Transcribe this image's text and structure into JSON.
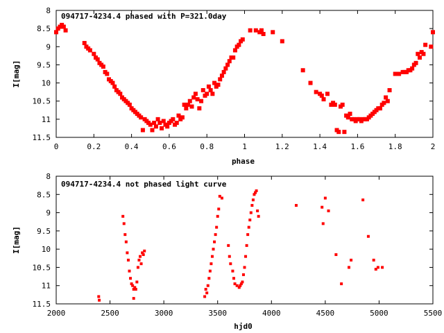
{
  "chart_data": [
    {
      "type": "scatter",
      "title": "094717-4234.4 phased with P=321.0day",
      "xlabel": "phase",
      "ylabel": "I[mag]",
      "xlim": [
        0,
        2
      ],
      "ylim": [
        11.5,
        8
      ],
      "y_inverted": true,
      "xticks": [
        "0",
        "0.2",
        "0.4",
        "0.6",
        "0.8",
        "1",
        "1.2",
        "1.4",
        "1.6",
        "1.8",
        "2"
      ],
      "yticks": [
        "8",
        "8.5",
        "9",
        "9.5",
        "10",
        "10.5",
        "11",
        "11.5"
      ],
      "marker": "filled-square-large",
      "color": "#ff0000",
      "grid": false,
      "series": [
        {
          "x": [
            0.0,
            0.01,
            0.02,
            0.03,
            0.04,
            0.05,
            0.15,
            0.16,
            0.17,
            0.18,
            0.2,
            0.21,
            0.22,
            0.23,
            0.24,
            0.25,
            0.26,
            0.27,
            0.28,
            0.29,
            0.3,
            0.31,
            0.32,
            0.33,
            0.34,
            0.35,
            0.36,
            0.37,
            0.38,
            0.39,
            0.4,
            0.41,
            0.42,
            0.43,
            0.44,
            0.45,
            0.46,
            0.47,
            0.48,
            0.49,
            0.5,
            0.51,
            0.52,
            0.53,
            0.54,
            0.55,
            0.56,
            0.57,
            0.58,
            0.59,
            0.6,
            0.61,
            0.62,
            0.63,
            0.64,
            0.65,
            0.66,
            0.67,
            0.68,
            0.69,
            0.7,
            0.71,
            0.72,
            0.73,
            0.74,
            0.75,
            0.76,
            0.77,
            0.78,
            0.79,
            0.8,
            0.81,
            0.82,
            0.83,
            0.84,
            0.85,
            0.86,
            0.87,
            0.88,
            0.89,
            0.9,
            0.91,
            0.92,
            0.93,
            0.94,
            0.95,
            0.96,
            0.97,
            0.98,
            0.99,
            1.03,
            1.06,
            1.08,
            1.09,
            1.1,
            1.15,
            1.2,
            1.31,
            1.35,
            1.38,
            1.4,
            1.41,
            1.42,
            1.44,
            1.46,
            1.47,
            1.48,
            1.49,
            1.5,
            1.51,
            1.52,
            1.53,
            1.54,
            1.55,
            1.56,
            1.57,
            1.58,
            1.59,
            1.6,
            1.61,
            1.62,
            1.63,
            1.64,
            1.65,
            1.66,
            1.67,
            1.68,
            1.69,
            1.7,
            1.71,
            1.72,
            1.73,
            1.74,
            1.75,
            1.76,
            1.77,
            1.8,
            1.82,
            1.84,
            1.85,
            1.86,
            1.87,
            1.88,
            1.89,
            1.9,
            1.91,
            1.92,
            1.93,
            1.94,
            1.95,
            1.96,
            1.99,
            2.0
          ],
          "y": [
            8.6,
            8.5,
            8.45,
            8.4,
            8.45,
            8.55,
            8.9,
            9.0,
            9.05,
            9.1,
            9.2,
            9.3,
            9.35,
            9.45,
            9.5,
            9.55,
            9.7,
            9.75,
            9.9,
            9.95,
            10.0,
            10.1,
            10.2,
            10.25,
            10.3,
            10.4,
            10.45,
            10.5,
            10.55,
            10.6,
            10.7,
            10.75,
            10.8,
            10.85,
            10.9,
            10.95,
            11.3,
            11.0,
            11.05,
            11.1,
            11.15,
            11.3,
            11.1,
            11.2,
            11.0,
            11.1,
            11.25,
            11.05,
            11.15,
            11.2,
            11.1,
            11.05,
            11.0,
            11.15,
            11.1,
            10.9,
            11.0,
            10.95,
            10.6,
            10.7,
            10.6,
            10.5,
            10.65,
            10.4,
            10.3,
            10.45,
            10.7,
            10.5,
            10.2,
            10.35,
            10.3,
            10.1,
            10.2,
            10.3,
            10.0,
            10.1,
            10.05,
            9.9,
            9.8,
            9.7,
            9.6,
            9.5,
            9.4,
            9.3,
            9.3,
            9.1,
            9.0,
            8.95,
            8.85,
            8.8,
            8.55,
            8.55,
            8.6,
            8.55,
            8.65,
            8.6,
            8.85,
            9.65,
            10.0,
            10.25,
            10.3,
            10.35,
            10.45,
            10.3,
            10.6,
            10.55,
            10.6,
            11.3,
            11.35,
            10.65,
            10.6,
            11.35,
            10.9,
            10.95,
            10.85,
            11.0,
            11.0,
            11.05,
            11.0,
            11.0,
            11.05,
            11.0,
            11.0,
            11.0,
            10.95,
            10.9,
            10.85,
            10.8,
            10.75,
            10.7,
            10.7,
            10.6,
            10.55,
            10.4,
            10.5,
            10.2,
            9.75,
            9.75,
            9.7,
            9.7,
            9.7,
            9.65,
            9.65,
            9.6,
            9.5,
            9.45,
            9.2,
            9.3,
            9.15,
            9.2,
            8.95,
            9.0,
            8.6
          ]
        }
      ]
    },
    {
      "type": "scatter",
      "title": "094717-4234.4 not phased light curve",
      "xlabel": "hjd0",
      "ylabel": "I[mag]",
      "xlim": [
        2000,
        5500
      ],
      "ylim": [
        11.5,
        8
      ],
      "y_inverted": true,
      "xticks": [
        "2000",
        "2500",
        "3000",
        "3500",
        "4000",
        "4500",
        "5000",
        "5500"
      ],
      "yticks": [
        "8",
        "8.5",
        "9",
        "9.5",
        "10",
        "10.5",
        "11",
        "11.5"
      ],
      "marker": "filled-square-small",
      "color": "#ff0000",
      "grid": false,
      "series": [
        {
          "x": [
            2395,
            2400,
            2620,
            2630,
            2640,
            2650,
            2660,
            2670,
            2680,
            2690,
            2700,
            2710,
            2720,
            2730,
            2740,
            2750,
            2720,
            2760,
            2770,
            2780,
            2790,
            2800,
            2810,
            2820,
            3380,
            3390,
            3400,
            3410,
            3420,
            3430,
            3440,
            3450,
            3460,
            3470,
            3480,
            3490,
            3500,
            3510,
            3520,
            3540,
            3600,
            3610,
            3620,
            3640,
            3650,
            3660,
            3680,
            3700,
            3710,
            3720,
            3730,
            3740,
            3750,
            3760,
            3770,
            3780,
            3790,
            3800,
            3810,
            3820,
            3830,
            3840,
            3850,
            3860,
            3870,
            3880,
            4230,
            4470,
            4480,
            4500,
            4530,
            4600,
            4650,
            4720,
            4740,
            4850,
            4900,
            4950,
            4970,
            4990,
            5030
          ],
          "y": [
            11.3,
            11.4,
            9.1,
            9.3,
            9.6,
            9.8,
            10.1,
            10.3,
            10.6,
            10.8,
            10.95,
            11.0,
            11.1,
            11.05,
            11.1,
            10.9,
            11.35,
            10.5,
            10.3,
            10.2,
            10.4,
            10.1,
            10.15,
            10.05,
            11.3,
            11.1,
            11.2,
            11.0,
            10.8,
            10.6,
            10.4,
            10.2,
            10.0,
            9.8,
            9.6,
            9.4,
            9.1,
            8.9,
            8.55,
            8.6,
            9.9,
            10.2,
            10.4,
            10.6,
            10.8,
            10.95,
            11.0,
            11.05,
            11.0,
            10.95,
            10.9,
            10.7,
            10.5,
            10.2,
            9.9,
            9.6,
            9.4,
            9.2,
            9.0,
            8.8,
            8.65,
            8.5,
            8.45,
            8.4,
            8.95,
            9.1,
            8.8,
            8.85,
            9.3,
            8.6,
            8.95,
            10.15,
            10.95,
            10.5,
            10.3,
            8.65,
            9.65,
            10.3,
            10.55,
            10.5,
            10.5
          ]
        }
      ]
    }
  ]
}
